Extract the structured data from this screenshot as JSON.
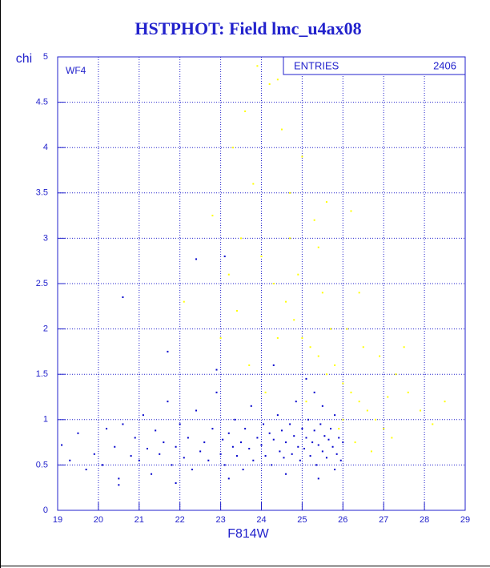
{
  "chart_data": {
    "type": "scatter",
    "title": "HSTPHOT: Field lmc_u4ax08",
    "xlabel": "F814W",
    "ylabel": "chi",
    "annotation": "WF4",
    "stats": {
      "label": "ENTRIES",
      "value": 2406
    },
    "xlim": [
      19,
      29
    ],
    "ylim": [
      0,
      5
    ],
    "xticks": [
      19,
      20,
      21,
      22,
      23,
      24,
      25,
      26,
      27,
      28,
      29
    ],
    "yticks": [
      0,
      0.5,
      1,
      1.5,
      2,
      2.5,
      3,
      3.5,
      4,
      4.5,
      5
    ],
    "grid": true,
    "series": [
      {
        "color": "#0000cc",
        "x": [
          19.1,
          19.3,
          19.5,
          19.7,
          19.9,
          20.1,
          20.2,
          20.4,
          20.5,
          20.6,
          20.8,
          20.9,
          21.0,
          21.1,
          21.2,
          21.3,
          21.4,
          21.5,
          21.6,
          21.7,
          21.8,
          21.9,
          22.0,
          22.1,
          22.2,
          22.3,
          22.4,
          22.5,
          22.6,
          22.7,
          22.8,
          22.9,
          23.0,
          23.05,
          23.1,
          23.2,
          23.3,
          23.35,
          23.4,
          23.5,
          23.55,
          23.6,
          23.7,
          23.75,
          23.8,
          23.9,
          24.0,
          24.05,
          24.1,
          24.2,
          24.25,
          24.3,
          24.4,
          24.45,
          24.5,
          24.55,
          24.6,
          24.7,
          24.75,
          24.8,
          24.85,
          24.9,
          24.95,
          25.0,
          25.05,
          25.1,
          25.15,
          25.2,
          25.25,
          25.3,
          25.35,
          25.4,
          25.45,
          25.5,
          25.55,
          25.6,
          25.65,
          25.7,
          25.75,
          25.8,
          25.85,
          25.9,
          25.95,
          26.0,
          25.3,
          25.1,
          23.1,
          22.4,
          20.6,
          21.7,
          22.9,
          24.3,
          25.5,
          24.6,
          23.2,
          21.9,
          20.5,
          25.8,
          25.4
        ],
        "y": [
          0.72,
          0.55,
          0.85,
          0.45,
          0.62,
          0.5,
          0.9,
          0.7,
          0.35,
          0.95,
          0.6,
          0.8,
          0.55,
          1.05,
          0.68,
          0.4,
          0.88,
          0.62,
          0.75,
          1.2,
          0.5,
          0.7,
          0.95,
          0.58,
          0.8,
          0.45,
          1.1,
          0.65,
          0.75,
          0.55,
          0.9,
          1.3,
          0.62,
          0.78,
          0.5,
          0.85,
          0.7,
          1.0,
          0.6,
          0.75,
          0.45,
          0.9,
          0.68,
          1.15,
          0.55,
          0.8,
          0.72,
          0.95,
          0.6,
          0.85,
          0.5,
          0.78,
          1.05,
          0.65,
          0.88,
          0.58,
          0.75,
          0.95,
          0.62,
          0.82,
          1.2,
          0.7,
          0.55,
          0.9,
          0.68,
          0.8,
          1.0,
          0.6,
          0.75,
          0.88,
          0.5,
          0.72,
          0.95,
          0.65,
          0.82,
          0.58,
          0.78,
          0.9,
          0.7,
          1.05,
          0.62,
          0.8,
          0.55,
          0.75,
          1.3,
          1.45,
          2.8,
          2.77,
          2.35,
          1.75,
          1.55,
          1.6,
          1.15,
          0.4,
          0.35,
          0.3,
          0.28,
          0.45,
          0.35
        ]
      },
      {
        "color": "#ffff00",
        "x": [
          23.3,
          23.6,
          23.9,
          24.2,
          24.4,
          23.8,
          24.5,
          24.7,
          25.0,
          25.3,
          25.6,
          26.2,
          23.5,
          24.0,
          24.3,
          24.6,
          24.8,
          25.0,
          25.2,
          25.4,
          25.6,
          25.8,
          26.0,
          26.2,
          26.4,
          26.6,
          26.8,
          27.0,
          27.2,
          26.5,
          26.9,
          27.3,
          27.6,
          27.9,
          28.2,
          28.5,
          27.5,
          26.1,
          25.5,
          24.9,
          23.4,
          23.0,
          22.8,
          22.1,
          23.7,
          24.1,
          25.9,
          26.3,
          26.7,
          25.7,
          26.0,
          27.1,
          24.4,
          25.1,
          23.2,
          24.7,
          26.4,
          25.4
        ],
        "y": [
          4.0,
          4.4,
          4.9,
          4.7,
          4.75,
          3.6,
          4.2,
          3.5,
          3.9,
          3.2,
          3.4,
          3.3,
          3.0,
          2.8,
          2.5,
          2.3,
          2.1,
          1.9,
          1.8,
          1.7,
          1.5,
          1.6,
          1.4,
          1.3,
          1.2,
          1.1,
          1.0,
          0.9,
          0.8,
          1.8,
          1.7,
          1.5,
          1.3,
          1.1,
          0.95,
          1.2,
          1.8,
          2.0,
          2.4,
          2.6,
          2.2,
          1.9,
          3.25,
          2.3,
          1.6,
          1.3,
          0.9,
          0.75,
          0.65,
          2.0,
          1.0,
          1.25,
          1.9,
          1.2,
          2.6,
          3.0,
          2.4,
          2.9
        ]
      }
    ]
  }
}
